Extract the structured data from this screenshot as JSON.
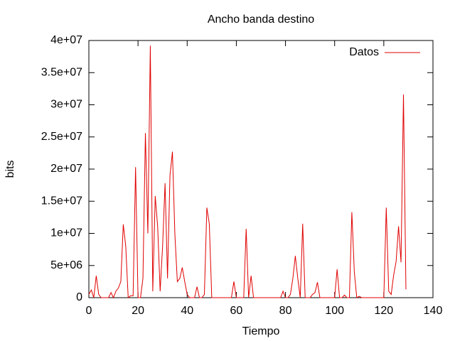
{
  "chart_data": {
    "type": "line",
    "title": "Ancho banda destino",
    "xlabel": "Tiempo",
    "ylabel": "bits",
    "x": [
      0,
      1,
      2,
      3,
      4,
      5,
      6,
      7,
      8,
      9,
      10,
      11,
      12,
      13,
      14,
      15,
      16,
      17,
      18,
      19,
      20,
      21,
      22,
      23,
      24,
      25,
      26,
      27,
      28,
      29,
      30,
      31,
      32,
      33,
      34,
      35,
      36,
      37,
      38,
      39,
      40,
      41,
      42,
      43,
      44,
      45,
      46,
      47,
      48,
      49,
      50,
      51,
      52,
      53,
      54,
      55,
      56,
      57,
      58,
      59,
      60,
      61,
      62,
      63,
      64,
      65,
      66,
      67,
      68,
      69,
      70,
      71,
      72,
      73,
      74,
      75,
      76,
      77,
      78,
      79,
      80,
      81,
      82,
      83,
      84,
      85,
      86,
      87,
      88,
      89,
      90,
      91,
      92,
      93,
      94,
      95,
      96,
      97,
      98,
      99,
      100,
      101,
      102,
      103,
      104,
      105,
      106,
      107,
      108,
      109,
      110,
      111,
      112,
      113,
      114,
      115,
      116,
      117,
      118,
      119,
      120,
      121,
      122,
      123,
      124,
      125,
      126,
      127,
      128,
      129
    ],
    "series": [
      {
        "name": "Datos",
        "color": "#e00000",
        "values": [
          500000,
          1200000,
          0,
          3400000,
          500000,
          0,
          0,
          0,
          0,
          800000,
          0,
          1000000,
          1500000,
          2500000,
          11400000,
          8000000,
          0,
          300000,
          300000,
          20300000,
          0,
          0,
          3000000,
          25600000,
          10000000,
          39200000,
          1000000,
          15800000,
          11000000,
          1000000,
          8000000,
          17800000,
          3000000,
          19000000,
          22700000,
          9800000,
          2500000,
          3000000,
          4700000,
          2500000,
          500000,
          0,
          0,
          0,
          1700000,
          0,
          0,
          500000,
          14000000,
          11500000,
          0,
          0,
          0,
          0,
          0,
          0,
          0,
          0,
          0,
          2500000,
          0,
          0,
          0,
          0,
          10700000,
          0,
          3400000,
          0,
          0,
          0,
          0,
          0,
          0,
          0,
          0,
          0,
          0,
          0,
          0,
          1000000,
          0,
          0,
          500000,
          3000000,
          6500000,
          3000000,
          0,
          11500000,
          0,
          0,
          0,
          500000,
          800000,
          2400000,
          0,
          0,
          0,
          0,
          0,
          0,
          0,
          4400000,
          0,
          0,
          400000,
          0,
          0,
          13300000,
          4000000,
          0,
          200000,
          0,
          0,
          0,
          0,
          0,
          0,
          0,
          0,
          0,
          0,
          14000000,
          1000000,
          500000,
          3500000,
          5600000,
          11100000,
          5500000,
          31600000,
          1300000
        ]
      }
    ],
    "xlim": [
      0,
      140
    ],
    "xticks": [
      0,
      20,
      40,
      60,
      80,
      100,
      120,
      140
    ],
    "ylim": [
      0,
      40000000
    ],
    "yticks": [
      0,
      {
        "value": 5000000,
        "label": "5e+06"
      },
      {
        "value": 10000000,
        "label": "1e+07"
      },
      {
        "value": 15000000,
        "label": "1.5e+07"
      },
      {
        "value": 20000000,
        "label": "2e+07"
      },
      {
        "value": 25000000,
        "label": "2.5e+07"
      },
      {
        "value": 30000000,
        "label": "3e+07"
      },
      {
        "value": 35000000,
        "label": "3.5e+07"
      },
      {
        "value": 40000000,
        "label": "4e+07"
      }
    ],
    "legend": "top-right"
  }
}
